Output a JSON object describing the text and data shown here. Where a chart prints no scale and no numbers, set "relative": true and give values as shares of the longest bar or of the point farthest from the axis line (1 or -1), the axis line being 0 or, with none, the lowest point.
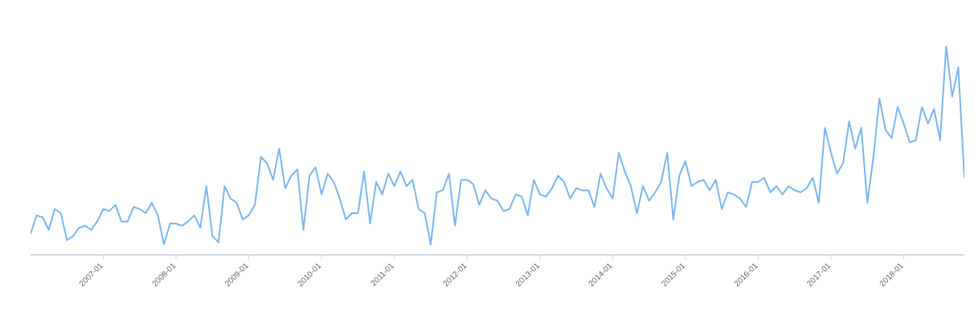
{
  "chart_data": {
    "type": "line",
    "relative": true,
    "color": "#7cb5ec",
    "marker": "none",
    "line_style": "solid",
    "categories": [
      null,
      null,
      null,
      null,
      null,
      null,
      null,
      null,
      null,
      null,
      null,
      null,
      "2007-01",
      null,
      null,
      null,
      null,
      null,
      null,
      null,
      null,
      null,
      null,
      null,
      "2008-01",
      null,
      null,
      null,
      null,
      null,
      null,
      null,
      null,
      null,
      null,
      null,
      "2009-01",
      null,
      null,
      null,
      null,
      null,
      null,
      null,
      null,
      null,
      null,
      null,
      "2010-01",
      null,
      null,
      null,
      null,
      null,
      null,
      null,
      null,
      null,
      null,
      null,
      "2011-01",
      null,
      null,
      null,
      null,
      null,
      null,
      null,
      null,
      null,
      null,
      null,
      "2012-01",
      null,
      null,
      null,
      null,
      null,
      null,
      null,
      null,
      null,
      null,
      null,
      "2013-01",
      null,
      null,
      null,
      null,
      null,
      null,
      null,
      null,
      null,
      null,
      null,
      "2014-01",
      null,
      null,
      null,
      null,
      null,
      null,
      null,
      null,
      null,
      null,
      null,
      "2015-01",
      null,
      null,
      null,
      null,
      null,
      null,
      null,
      null,
      null,
      null,
      null,
      "2016-01",
      null,
      null,
      null,
      null,
      null,
      null,
      null,
      null,
      null,
      null,
      null,
      "2017-01",
      null,
      null,
      null,
      null,
      null,
      null,
      null,
      null,
      null,
      null,
      null,
      "2018-01",
      null,
      null,
      null,
      null,
      null,
      null,
      null,
      null,
      null,
      null
    ],
    "values": [
      0.1,
      0.19,
      0.18,
      0.12,
      0.22,
      0.2,
      0.07,
      0.09,
      0.13,
      0.14,
      0.12,
      0.16,
      0.22,
      0.21,
      0.24,
      0.16,
      0.16,
      0.23,
      0.22,
      0.2,
      0.25,
      0.19,
      0.05,
      0.15,
      0.15,
      0.14,
      0.16,
      0.19,
      0.13,
      0.33,
      0.09,
      0.06,
      0.33,
      0.27,
      0.25,
      0.17,
      0.19,
      0.24,
      0.47,
      0.44,
      0.36,
      0.51,
      0.32,
      0.38,
      0.41,
      0.12,
      0.38,
      0.42,
      0.29,
      0.39,
      0.35,
      0.27,
      0.17,
      0.2,
      0.2,
      0.4,
      0.15,
      0.35,
      0.29,
      0.39,
      0.33,
      0.4,
      0.33,
      0.36,
      0.22,
      0.2,
      0.05,
      0.3,
      0.31,
      0.39,
      0.14,
      0.36,
      0.36,
      0.34,
      0.24,
      0.31,
      0.27,
      0.26,
      0.21,
      0.22,
      0.29,
      0.28,
      0.19,
      0.36,
      0.29,
      0.28,
      0.32,
      0.38,
      0.35,
      0.27,
      0.32,
      0.31,
      0.31,
      0.23,
      0.39,
      0.32,
      0.27,
      0.49,
      0.4,
      0.33,
      0.2,
      0.33,
      0.26,
      0.3,
      0.35,
      0.49,
      0.17,
      0.38,
      0.45,
      0.33,
      0.35,
      0.36,
      0.31,
      0.36,
      0.22,
      0.3,
      0.29,
      0.27,
      0.23,
      0.35,
      0.35,
      0.37,
      0.3,
      0.33,
      0.29,
      0.33,
      0.31,
      0.3,
      0.32,
      0.37,
      0.25,
      0.61,
      0.49,
      0.39,
      0.44,
      0.64,
      0.51,
      0.61,
      0.25,
      0.47,
      0.75,
      0.6,
      0.56,
      0.71,
      0.63,
      0.54,
      0.55,
      0.71,
      0.63,
      0.7,
      0.55,
      1,
      0.76,
      0.9,
      0.37
    ]
  }
}
